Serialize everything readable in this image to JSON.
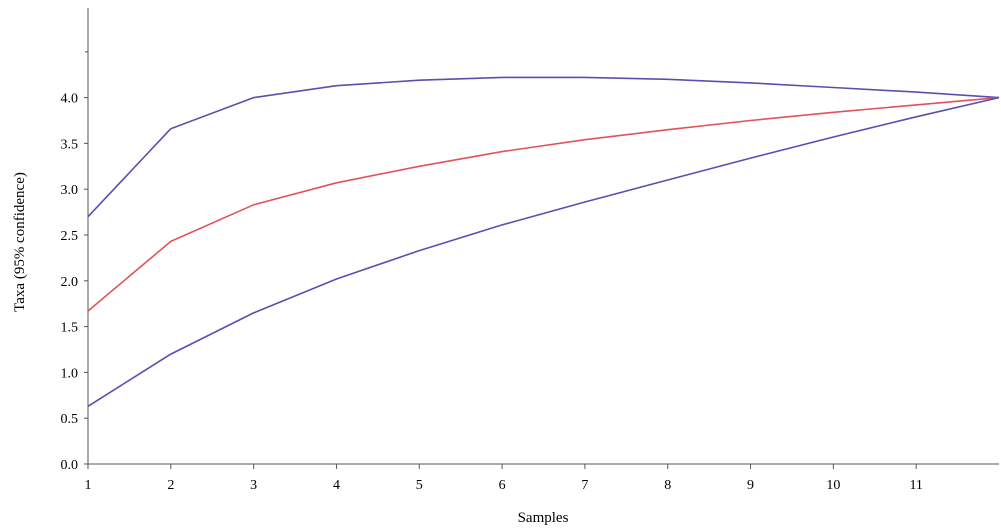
{
  "chart_data": {
    "type": "line",
    "xlabel": "Samples",
    "ylabel": "Taxa (95% confidence)",
    "x": [
      1,
      2,
      3,
      4,
      5,
      6,
      7,
      8,
      9,
      10,
      11,
      12
    ],
    "x_tick_labels": [
      "1",
      "2",
      "3",
      "4",
      "5",
      "6",
      "7",
      "8",
      "9",
      "10",
      "11"
    ],
    "y_tick_labels": [
      "0.0",
      "0.5",
      "1.0",
      "1.5",
      "2.0",
      "2.5",
      "3.0",
      "3.5",
      "4.0"
    ],
    "xlim": [
      1,
      12
    ],
    "ylim": [
      0,
      4.9
    ],
    "grid": false,
    "series": [
      {
        "values": [
          2.7,
          3.66,
          4.0,
          4.13,
          4.19,
          4.22,
          4.22,
          4.2,
          4.16,
          4.11,
          4.06,
          4.0
        ],
        "color": "#5a4fb0"
      },
      {
        "values": [
          1.67,
          2.43,
          2.83,
          3.07,
          3.25,
          3.41,
          3.54,
          3.65,
          3.75,
          3.84,
          3.92,
          4.0
        ],
        "color": "#e0535a"
      },
      {
        "values": [
          0.63,
          1.2,
          1.65,
          2.02,
          2.33,
          2.61,
          2.86,
          3.1,
          3.34,
          3.57,
          3.79,
          4.0
        ],
        "color": "#5a4fb0"
      }
    ]
  }
}
